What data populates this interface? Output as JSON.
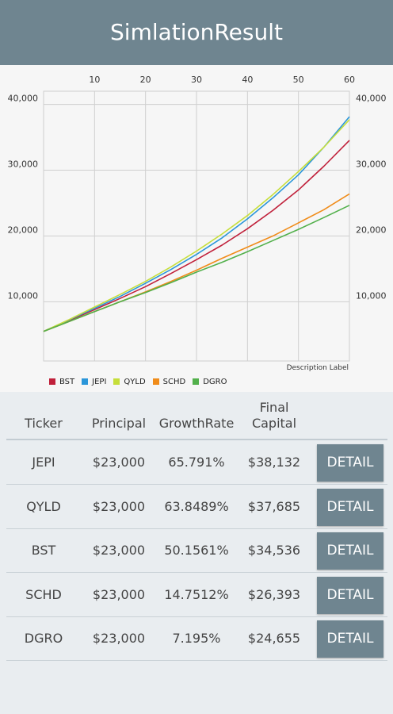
{
  "app": {
    "title": "SimlationResult"
  },
  "chart_data": {
    "type": "line",
    "x_ticks": [
      10,
      20,
      30,
      40,
      50,
      60
    ],
    "y_ticks": [
      "10,000",
      "20,000",
      "30,000",
      "40,000"
    ],
    "xlim": [
      0,
      60
    ],
    "ylim": [
      1000,
      42000
    ],
    "description_label": "Description Label",
    "x": [
      0,
      5,
      10,
      15,
      20,
      25,
      30,
      35,
      40,
      45,
      50,
      55,
      60
    ],
    "series": [
      {
        "name": "BST",
        "color": "#c0203a",
        "values": [
          5500,
          7150,
          8800,
          10500,
          12300,
          14300,
          16400,
          18600,
          21100,
          23900,
          27000,
          30600,
          34536
        ]
      },
      {
        "name": "JEPI",
        "color": "#2b96d9",
        "values": [
          5500,
          7250,
          9000,
          10800,
          12800,
          14900,
          17200,
          19700,
          22600,
          25800,
          29300,
          33500,
          38132
        ]
      },
      {
        "name": "QYLD",
        "color": "#c6de3a",
        "values": [
          5500,
          7300,
          9200,
          11100,
          13100,
          15300,
          17700,
          20300,
          23100,
          26300,
          29800,
          33500,
          37685
        ]
      },
      {
        "name": "SCHD",
        "color": "#f08c1a",
        "values": [
          5500,
          7000,
          8500,
          10000,
          11500,
          13100,
          14800,
          16600,
          18300,
          20000,
          22000,
          24000,
          26393
        ]
      },
      {
        "name": "DGRO",
        "color": "#52b04b",
        "values": [
          5500,
          7000,
          8500,
          10000,
          11400,
          12900,
          14500,
          16000,
          17600,
          19300,
          21000,
          22800,
          24655
        ]
      }
    ]
  },
  "table": {
    "headers": {
      "ticker": "Ticker",
      "principal": "Principal",
      "growth": "GrowthRate",
      "final": "Final\nCapital"
    },
    "detail_label": "DETAIL",
    "rows": [
      {
        "ticker": "JEPI",
        "principal": "$23,000",
        "growth": "65.791%",
        "final": "$38,132"
      },
      {
        "ticker": "QYLD",
        "principal": "$23,000",
        "growth": "63.8489%",
        "final": "$37,685"
      },
      {
        "ticker": "BST",
        "principal": "$23,000",
        "growth": "50.1561%",
        "final": "$34,536"
      },
      {
        "ticker": "SCHD",
        "principal": "$23,000",
        "growth": "14.7512%",
        "final": "$26,393"
      },
      {
        "ticker": "DGRO",
        "principal": "$23,000",
        "growth": "7.195%",
        "final": "$24,655"
      }
    ]
  }
}
